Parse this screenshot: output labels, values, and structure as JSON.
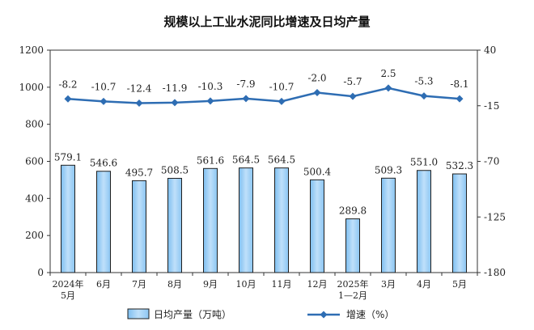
{
  "chart_data": {
    "type": "bar",
    "title": "规模以上工业水泥同比增速及日均产量",
    "categories": [
      "2024年\n5月",
      "6月",
      "7月",
      "8月",
      "9月",
      "10月",
      "11月",
      "12月",
      "2025年\n1—2月",
      "3月",
      "4月",
      "5月"
    ],
    "series": [
      {
        "name": "日均产量（万吨）",
        "type": "bar",
        "axis": "left",
        "values": [
          579.1,
          546.6,
          495.7,
          508.5,
          561.6,
          564.5,
          564.5,
          500.4,
          289.8,
          509.3,
          551.0,
          532.3
        ],
        "labels": [
          "579.1",
          "546.6",
          "495.7",
          "508.5",
          "561.6",
          "564.5",
          "564.5",
          "500.4",
          "289.8",
          "509.3",
          "551.0",
          "532.3"
        ]
      },
      {
        "name": "增速（%）",
        "type": "line",
        "axis": "right",
        "values": [
          -8.2,
          -10.7,
          -12.4,
          -11.9,
          -10.3,
          -7.9,
          -10.7,
          -2.0,
          -5.7,
          2.5,
          -5.3,
          -8.1
        ],
        "labels": [
          "-8.2",
          "-10.7",
          "-12.4",
          "-11.9",
          "-10.3",
          "-7.9",
          "-10.7",
          "-2.0",
          "-5.7",
          "2.5",
          "-5.3",
          "-8.1"
        ]
      }
    ],
    "y_left": {
      "min": 0,
      "max": 1200,
      "ticks": [
        0,
        200,
        400,
        600,
        800,
        1000,
        1200
      ]
    },
    "y_right": {
      "min": -180,
      "max": 40,
      "ticks": [
        -180,
        -125,
        -70,
        -15,
        40
      ]
    },
    "legend_position": "bottom",
    "grid": false,
    "colors": {
      "bar_fill": "#a9d4f6",
      "bar_stroke": "#1f1f1f",
      "line": "#2e6db3",
      "axis": "#333333"
    }
  }
}
